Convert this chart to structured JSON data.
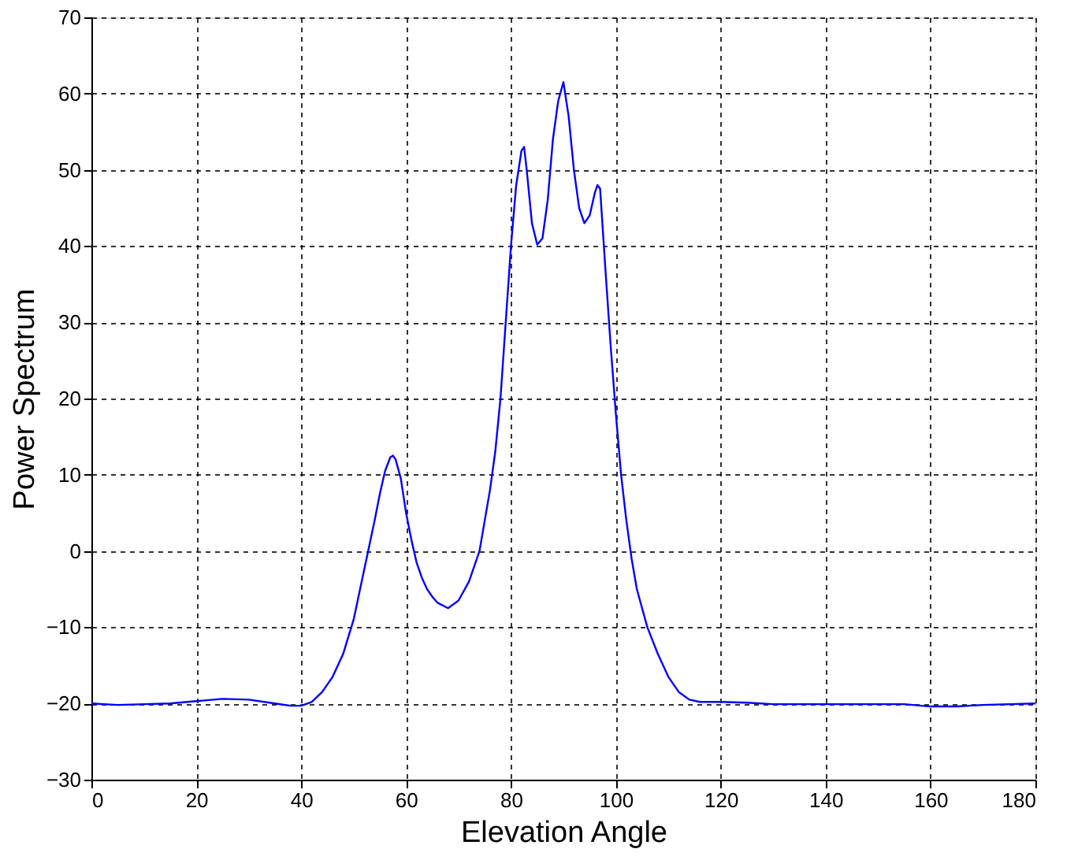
{
  "chart_data": {
    "type": "line",
    "xlabel": "Elevation Angle",
    "ylabel": "Power Spectrum",
    "x": [
      0,
      5,
      10,
      15,
      20,
      25,
      30,
      35,
      38,
      40,
      42,
      44,
      46,
      48,
      50,
      52,
      54,
      55,
      56,
      57,
      57.5,
      58,
      59,
      60,
      61,
      62,
      63,
      64,
      65,
      66,
      68,
      70,
      72,
      74,
      76,
      77,
      78,
      79,
      80,
      81,
      82,
      82.5,
      83,
      84,
      85,
      86,
      87,
      88,
      89,
      90,
      91,
      92,
      93,
      94,
      95,
      96,
      96.5,
      97,
      98,
      99,
      100,
      101,
      102,
      103,
      104,
      106,
      108,
      110,
      112,
      114,
      116,
      118,
      120,
      125,
      130,
      135,
      140,
      145,
      150,
      155,
      160,
      165,
      170,
      175,
      180
    ],
    "series": [
      {
        "color": "#0000ff",
        "values": [
          -20,
          -20.2,
          -20.1,
          -20,
          -19.7,
          -19.4,
          -19.5,
          -20,
          -20.3,
          -20.3,
          -19.8,
          -18.5,
          -16.5,
          -13.5,
          -9,
          -2.5,
          4,
          7.5,
          10.5,
          12.3,
          12.5,
          12,
          9.5,
          5,
          1.5,
          -1.5,
          -3.5,
          -5,
          -6,
          -6.8,
          -7.5,
          -6.5,
          -4,
          0,
          8,
          13,
          20,
          30,
          40,
          48,
          52.5,
          53,
          50,
          43,
          40.2,
          41,
          46,
          54,
          59,
          61.5,
          57,
          50,
          45,
          43,
          44,
          47,
          48,
          47.5,
          37,
          27,
          18,
          10,
          4,
          -1,
          -5,
          -10,
          -13.5,
          -16.5,
          -18.5,
          -19.5,
          -19.8,
          -19.8,
          -19.8,
          -19.9,
          -20.1,
          -20.1,
          -20.1,
          -20.1,
          -20.1,
          -20.1,
          -20.4,
          -20.4,
          -20.2,
          -20.1,
          -20
        ]
      }
    ],
    "xlim": [
      0,
      180
    ],
    "xticks": [
      0,
      20,
      40,
      60,
      80,
      100,
      120,
      140,
      160,
      180
    ],
    "ylim": [
      -30,
      70
    ],
    "yticks": [
      -30,
      -20,
      -10,
      0,
      10,
      20,
      30,
      40,
      50,
      60,
      70
    ],
    "grid": true,
    "line_style": "solid",
    "marker": "none"
  }
}
